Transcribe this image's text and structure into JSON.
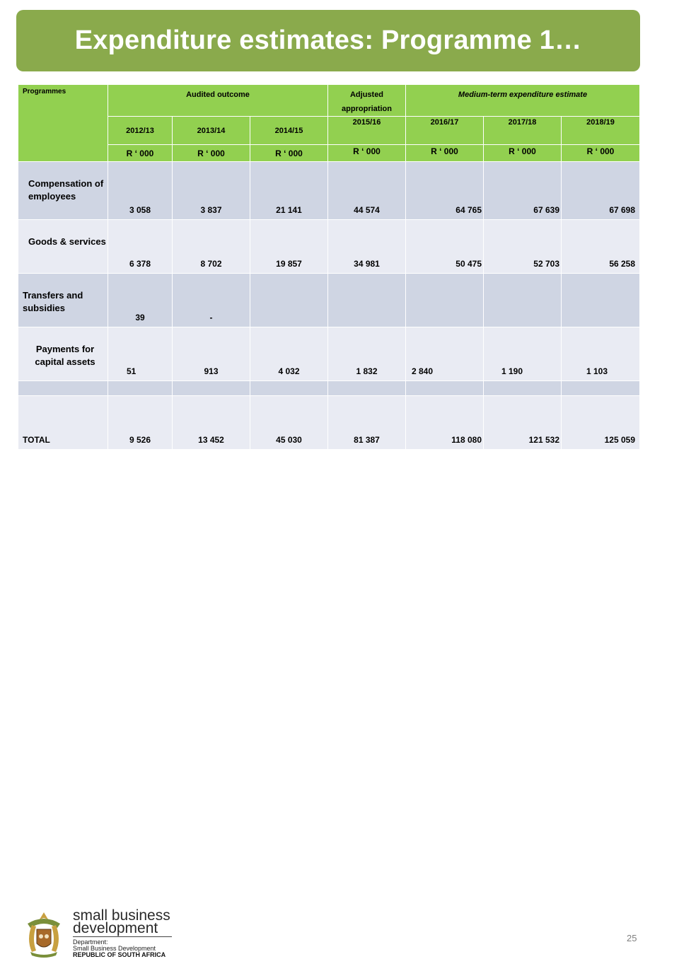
{
  "title": "Expenditure estimates: Programme 1…",
  "table": {
    "header": {
      "programmes": "Programmes",
      "audited": "Audited outcome",
      "adjusted": "Adjusted appropriation",
      "medium": "Medium-term expenditure estimate",
      "years": [
        "2012/13",
        "2013/14",
        "2014/15",
        "2015/16",
        "2016/17",
        "2017/18",
        "2018/19"
      ],
      "unit": "R ‘ 000"
    },
    "rows": [
      {
        "label": "Compensation of employees",
        "values": [
          "3 058",
          "3 837",
          "21 141",
          "44 574",
          "64 765",
          "67 639",
          "67 698"
        ]
      },
      {
        "label": "Goods & services",
        "values": [
          "6 378",
          "8 702",
          "19 857",
          "34 981",
          "50 475",
          "52 703",
          "56 258"
        ]
      },
      {
        "label": "Transfers and subsidies",
        "values": [
          "39",
          "-",
          "",
          "",
          "",
          "",
          ""
        ]
      },
      {
        "label": "Payments for capital assets",
        "values": [
          "51",
          "913",
          "4 032",
          "1 832",
          "2 840",
          "1 190",
          "1 103"
        ]
      },
      {
        "label": "",
        "values": [
          "",
          "",
          "",
          "",
          "",
          "",
          ""
        ]
      },
      {
        "label": "TOTAL",
        "values": [
          "9 526",
          "13 452",
          "45 030",
          "81 387",
          "118 080",
          "121 532",
          "125 059"
        ]
      }
    ]
  },
  "footer": {
    "org_line1": "small business",
    "org_line2": "development",
    "dept_line1": "Department:",
    "dept_line2": "Small Business Development",
    "dept_line3": "REPUBLIC OF SOUTH AFRICA",
    "page_number": "25",
    "emblem_icon": "coat-of-arms-icon"
  },
  "colors": {
    "title_bg": "#8aaa4c",
    "header_bg": "#92d050",
    "row_dark": "#cfd5e3",
    "row_light": "#e9ebf3"
  }
}
